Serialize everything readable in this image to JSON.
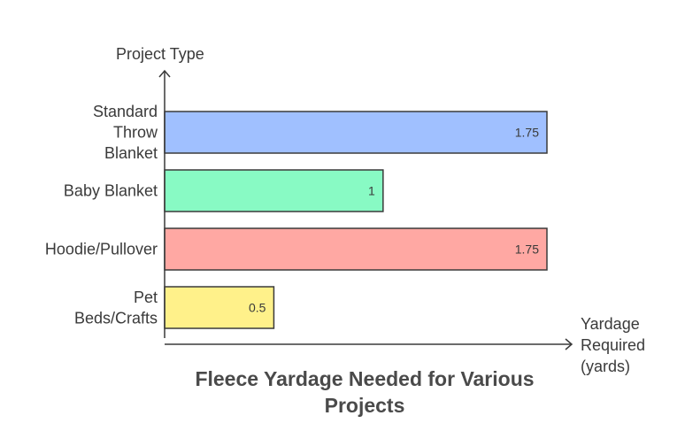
{
  "chart_data": {
    "type": "bar",
    "orientation": "horizontal",
    "title": "Fleece Yardage Needed for Various Projects",
    "ylabel": "Project Type",
    "xlabel": "Yardage Required (yards)",
    "categories": [
      "Standard Throw Blanket",
      "Baby Blanket",
      "Hoodie/Pullover",
      "Pet Beds/Crafts"
    ],
    "values": [
      1.75,
      1,
      1.75,
      0.5
    ],
    "colors": [
      "#a0c0ff",
      "#88fac4",
      "#ffa8a3",
      "#fff18a"
    ],
    "xlim": [
      0,
      1.85
    ],
    "grid": false,
    "legend": "none"
  }
}
